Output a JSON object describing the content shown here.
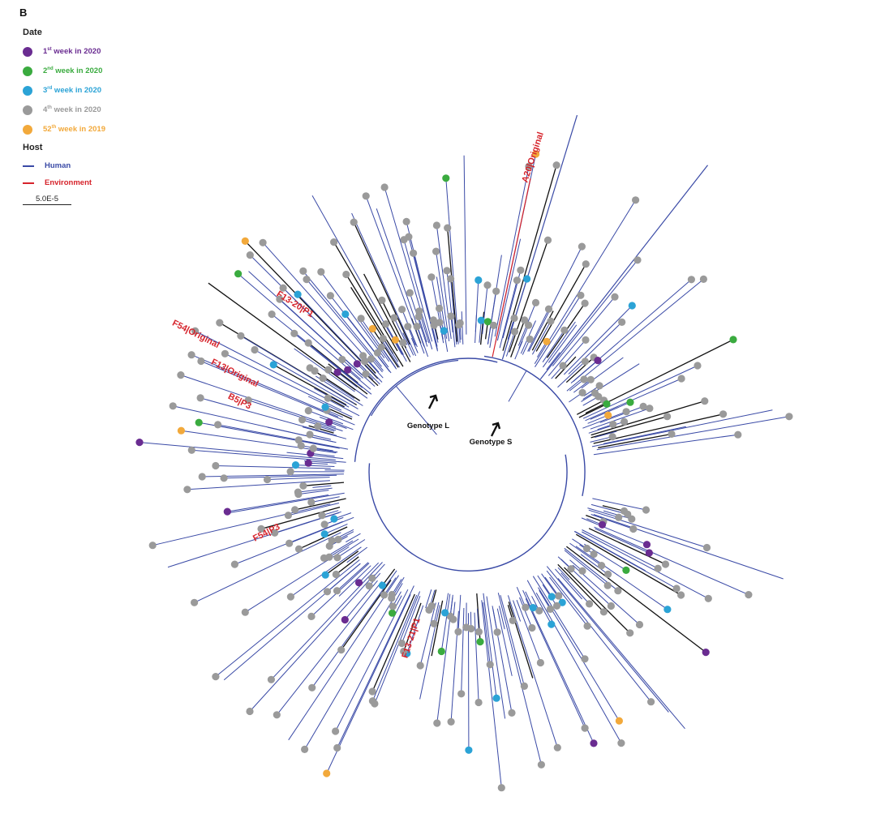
{
  "panel_letter": "B",
  "legend": {
    "date_title": "Date",
    "date_items": [
      {
        "label": "1st week in 2020",
        "num": "1",
        "sup": "st",
        "rest": " week in 2020",
        "color": "#6a2c91"
      },
      {
        "label": "2nd week in 2020",
        "num": "2",
        "sup": "nd",
        "rest": " week in 2020",
        "color": "#3aab3f"
      },
      {
        "label": "3rd week in 2020",
        "num": "3",
        "sup": "rd",
        "rest": " week in 2020",
        "color": "#2ba3d6"
      },
      {
        "label": "4th week in 2020",
        "num": "4",
        "sup": "th",
        "rest": " week in 2020",
        "color": "#9a9a9a"
      },
      {
        "label": "52th week in 2019",
        "num": "52",
        "sup": "th",
        "rest": " week in 2019",
        "color": "#f2a93b"
      }
    ],
    "host_title": "Host",
    "host_items": [
      {
        "label": "Human",
        "color": "#3a4aa6"
      },
      {
        "label": "Environment",
        "color": "#d6232b"
      }
    ],
    "scale_label": "5.0E-5"
  },
  "tree": {
    "center": [
      577,
      582
    ],
    "inner_radius": 150,
    "branch_color": "#3a4aa6",
    "dark_color": "#111111",
    "env_color": "#d6232b",
    "tip_color_default": "#9a9a9a",
    "genotype_labels": [
      {
        "text": "Genotype L"
      },
      {
        "text": "Genotype S"
      }
    ],
    "sample_labels": [
      {
        "text": "A20|Original"
      },
      {
        "text": "F13-20|P1"
      },
      {
        "text": "F54|Original"
      },
      {
        "text": "F13|Original"
      },
      {
        "text": "B5|P3"
      },
      {
        "text": "F54|P3"
      },
      {
        "text": "F13-21|P1"
      }
    ]
  }
}
